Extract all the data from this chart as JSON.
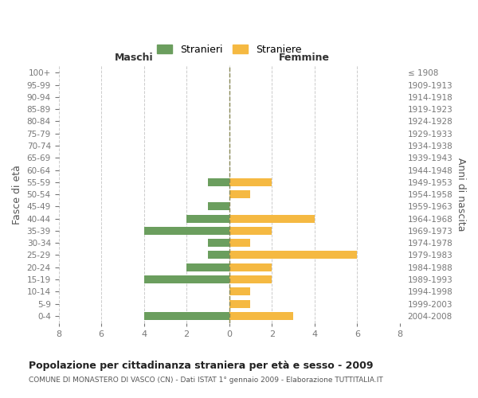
{
  "age_groups": [
    "0-4",
    "5-9",
    "10-14",
    "15-19",
    "20-24",
    "25-29",
    "30-34",
    "35-39",
    "40-44",
    "45-49",
    "50-54",
    "55-59",
    "60-64",
    "65-69",
    "70-74",
    "75-79",
    "80-84",
    "85-89",
    "90-94",
    "95-99",
    "100+"
  ],
  "birth_years": [
    "2004-2008",
    "1999-2003",
    "1994-1998",
    "1989-1993",
    "1984-1988",
    "1979-1983",
    "1974-1978",
    "1969-1973",
    "1964-1968",
    "1959-1963",
    "1954-1958",
    "1949-1953",
    "1944-1948",
    "1939-1943",
    "1934-1938",
    "1929-1933",
    "1924-1928",
    "1919-1923",
    "1914-1918",
    "1909-1913",
    "≤ 1908"
  ],
  "males": [
    4,
    0,
    0,
    4,
    2,
    1,
    1,
    4,
    2,
    1,
    0,
    1,
    0,
    0,
    0,
    0,
    0,
    0,
    0,
    0,
    0
  ],
  "females": [
    3,
    1,
    1,
    2,
    2,
    6,
    1,
    2,
    4,
    0,
    1,
    2,
    0,
    0,
    0,
    0,
    0,
    0,
    0,
    0,
    0
  ],
  "male_color": "#6b9e5e",
  "female_color": "#f5b942",
  "background_color": "#ffffff",
  "grid_color": "#cccccc",
  "title": "Popolazione per cittadinanza straniera per età e sesso - 2009",
  "subtitle": "COMUNE DI MONASTERO DI VASCO (CN) - Dati ISTAT 1° gennaio 2009 - Elaborazione TUTTITALIA.IT",
  "ylabel_left": "Fasce di età",
  "ylabel_right": "Anni di nascita",
  "xlabel_left": "Maschi",
  "xlabel_right": "Femmine",
  "legend_stranieri": "Stranieri",
  "legend_straniere": "Straniere",
  "xlim": 8
}
